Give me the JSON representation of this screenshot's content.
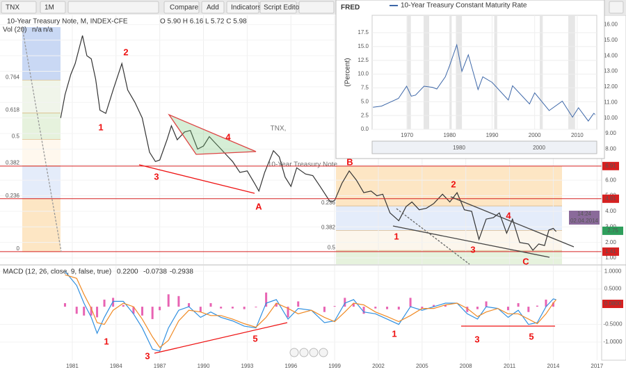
{
  "toolbar": {
    "symbol": "TNX",
    "interval": "1M",
    "buttons": [
      "Compare",
      "Add",
      "Indicators",
      "Script Editor"
    ]
  },
  "chart_data": [
    {
      "type": "line",
      "title": "10-Year Treasury Note, M, INDEX-CFE",
      "ohlc": "O 5.90 H 6.16 L 5.72 C 5.98",
      "volume": "Vol (20)",
      "volume_values": [
        "n/a",
        "n/a"
      ],
      "watermark": [
        "TNX,",
        "10-Year Treasury Note"
      ],
      "color": "#333333",
      "x": [
        1980.2,
        1980.5,
        1980.9,
        1981.2,
        1981.7,
        1982.0,
        1982.3,
        1982.6,
        1982.9,
        1983.3,
        1983.8,
        1984.4,
        1984.8,
        1985.3,
        1985.8,
        1986.3,
        1986.7,
        1987.0,
        1987.5,
        1987.8,
        1988.2,
        1988.7,
        1989.1,
        1989.6,
        1990.0,
        1990.4,
        1990.8,
        1991.2,
        1991.7,
        1992.0,
        1992.5,
        1993.0,
        1993.5,
        1993.8,
        1994.2,
        1994.8,
        1995.2,
        1995.6,
        1996.0,
        1996.4,
        1997.0,
        1997.5,
        1998.0,
        1998.7,
        1999.0,
        1999.5,
        2000.0,
        2000.5,
        2001.0,
        2001.5,
        2001.9,
        2002.3,
        2002.8,
        2003.4,
        2003.9,
        2004.3,
        2004.8,
        2005.3,
        2005.8,
        2006.4,
        2006.9,
        2007.4,
        2007.9,
        2008.4,
        2008.9,
        2009.4,
        2009.9,
        2010.3,
        2010.8,
        2011.2,
        2011.7,
        2012.3,
        2012.6,
        2013.0,
        2013.4,
        2013.7,
        2014.0,
        2014.2
      ],
      "values": [
        10.0,
        11.5,
        12.8,
        13.5,
        15.3,
        14.0,
        13.8,
        12.5,
        10.5,
        10.3,
        11.8,
        13.5,
        11.8,
        11.0,
        10.0,
        7.8,
        7.2,
        7.3,
        8.6,
        9.5,
        8.6,
        9.1,
        9.2,
        8.0,
        8.2,
        8.8,
        8.4,
        8.0,
        7.5,
        7.2,
        6.5,
        6.6,
        5.8,
        5.3,
        6.5,
        7.9,
        7.5,
        6.2,
        5.6,
        6.8,
        6.4,
        6.3,
        5.6,
        4.6,
        4.7,
        5.8,
        6.6,
        6.0,
        5.2,
        5.3,
        5.0,
        5.1,
        3.9,
        3.4,
        4.3,
        4.6,
        4.1,
        4.2,
        4.5,
        5.1,
        4.6,
        5.2,
        4.1,
        4.0,
        2.2,
        3.5,
        3.6,
        3.9,
        2.6,
        3.5,
        2.0,
        1.9,
        1.5,
        1.9,
        1.8,
        2.8,
        2.9,
        2.7
      ],
      "xlim": [
        1976.04,
        2017.32
      ],
      "xticks": [
        1981,
        1984,
        1987,
        1990,
        1993,
        1996,
        1999,
        2002,
        2005,
        2008,
        2011,
        2014,
        2017
      ],
      "ylim": [
        0.6,
        16.6
      ],
      "yticks": [
        {
          "value": 16,
          "label": "16.00"
        },
        {
          "value": 15,
          "label": "15.00"
        },
        {
          "value": 14,
          "label": "14.00"
        },
        {
          "value": 13,
          "label": "13.00"
        },
        {
          "value": 12,
          "label": "12.00"
        },
        {
          "value": 11,
          "label": "11.00"
        },
        {
          "value": 10,
          "label": "10.00"
        },
        {
          "value": 9,
          "label": "9.00"
        },
        {
          "value": 8,
          "label": "8.00"
        },
        {
          "value": 7,
          "label": "7.00"
        },
        {
          "value": 6,
          "label": "6.00"
        },
        {
          "value": 5,
          "label": "5.00"
        },
        {
          "value": 4,
          "label": "4.00"
        },
        {
          "value": 3,
          "label": "3.00"
        },
        {
          "value": 2,
          "label": "2.00"
        },
        {
          "value": 1,
          "label": "1.00"
        }
      ],
      "levels": [
        {
          "value": 6.91,
          "label": "6.91"
        },
        {
          "value": 4.81,
          "label": "4.81"
        },
        {
          "value": 1.41,
          "label": "1.41"
        }
      ],
      "level_color": "#d62020",
      "last": {
        "value": 2.75,
        "label": "2.75"
      },
      "last_color": "#2e9e5b",
      "cursor": [
        "14:24",
        "02.04.2014"
      ],
      "fib_left": {
        "range": [
          1.41,
          15.84
        ],
        "levels": [
          0,
          0.236,
          0.382,
          0.5,
          0.618,
          0.764
        ],
        "colors": [
          "#ffffff",
          "#fde6c4",
          "#e4ecfa",
          "#fff8ee",
          "#e6f2dd",
          "#f0f5ea",
          "#c9d8f4"
        ]
      },
      "fib_right": {
        "range": [
          6.91,
          -3.94
        ],
        "levels": [
          0.236,
          0.382,
          0.5
        ],
        "colors": [
          "#fde6c4",
          "#e4ecfa",
          "#fcf6ec",
          "#e6f2dd"
        ]
      },
      "annotations": [
        "1",
        "2",
        "3",
        "4",
        "A",
        "B",
        "1",
        "2",
        "3",
        "4",
        "C"
      ]
    },
    {
      "type": "line",
      "title": "MACD (12, 26, close, 9, false, true)",
      "legend": [
        {
          "value": 0.22,
          "label": "0.2200",
          "color": "#e0309a"
        },
        {
          "value": -0.0738,
          "label": "-0.0738",
          "color": "#2f8fe0"
        },
        {
          "value": -0.2938,
          "label": "-0.2938",
          "color": "#f08a24"
        }
      ],
      "x": [
        1980.5,
        1981.3,
        1981.8,
        1982.3,
        1982.7,
        1983.2,
        1983.8,
        1984.5,
        1985.2,
        1985.8,
        1986.5,
        1987.0,
        1987.6,
        1988.3,
        1989.0,
        1989.8,
        1990.5,
        1991.2,
        1992.0,
        1992.8,
        1993.6,
        1994.3,
        1995.0,
        1995.8,
        1996.5,
        1997.4,
        1998.3,
        1999.0,
        1999.7,
        2000.3,
        2001.0,
        2001.8,
        2002.6,
        2003.4,
        2004.2,
        2005.0,
        2005.8,
        2006.6,
        2007.4,
        2008.1,
        2008.8,
        2009.4,
        2010.2,
        2010.9,
        2011.6,
        2012.3,
        2012.9,
        2013.5,
        2014.0,
        2014.2
      ],
      "series": [
        {
          "type": "bar",
          "color": "#e0309a",
          "values": [
            0.1,
            -0.2,
            -0.25,
            -0.25,
            -0.3,
            0.2,
            0.25,
            0.05,
            -0.2,
            -0.25,
            -0.35,
            -0.1,
            0.35,
            0.3,
            0.1,
            -0.15,
            0.1,
            -0.05,
            -0.05,
            -0.07,
            -0.02,
            0.4,
            0.1,
            -0.3,
            0.15,
            0.0,
            -0.15,
            0.02,
            0.25,
            0.1,
            -0.2,
            -0.05,
            -0.07,
            -0.08,
            0.25,
            -0.05,
            0.05,
            0.05,
            0.0,
            -0.15,
            -0.07,
            0.15,
            0.0,
            -0.1,
            0.1,
            -0.15,
            0.03,
            0.2,
            0.12,
            0.0
          ]
        },
        {
          "type": "line",
          "color": "#2f8fe0",
          "values": [
            1.0,
            0.6,
            0.1,
            -0.3,
            -0.75,
            -0.3,
            0.15,
            0.15,
            -0.2,
            -0.6,
            -1.2,
            -1.25,
            -0.6,
            -0.1,
            0.0,
            -0.3,
            -0.15,
            -0.3,
            -0.4,
            -0.55,
            -0.6,
            0.1,
            0.2,
            -0.35,
            -0.05,
            -0.1,
            -0.45,
            -0.4,
            0.1,
            0.2,
            -0.15,
            -0.2,
            -0.35,
            -0.5,
            0.0,
            -0.1,
            0.0,
            0.1,
            0.1,
            -0.2,
            -0.35,
            0.0,
            -0.05,
            -0.3,
            -0.1,
            -0.5,
            -0.45,
            0.0,
            0.22,
            0.2
          ]
        },
        {
          "type": "line",
          "color": "#f08a24",
          "values": [
            0.9,
            0.8,
            0.35,
            -0.05,
            -0.45,
            -0.5,
            -0.1,
            0.1,
            0.0,
            -0.35,
            -0.85,
            -1.15,
            -0.95,
            -0.4,
            -0.1,
            -0.15,
            -0.25,
            -0.25,
            -0.35,
            -0.48,
            -0.58,
            -0.3,
            0.1,
            -0.05,
            -0.2,
            -0.1,
            -0.3,
            -0.42,
            -0.15,
            0.1,
            0.05,
            -0.15,
            -0.28,
            -0.42,
            -0.25,
            -0.05,
            -0.05,
            0.05,
            0.1,
            -0.05,
            -0.28,
            -0.15,
            -0.05,
            -0.2,
            -0.2,
            -0.35,
            -0.48,
            -0.2,
            0.1,
            0.2
          ]
        }
      ],
      "ylim": [
        -1.51,
        1.16
      ],
      "yticks": [
        {
          "value": 1,
          "label": "1.0000"
        },
        {
          "value": 0.5,
          "label": "0.5000"
        },
        {
          "value": -0.5,
          "label": "-0.5000"
        },
        {
          "value": -1,
          "label": "-1.0000"
        }
      ],
      "last": {
        "value": 0.08,
        "label": "0.0800"
      },
      "last_color": "#d62020",
      "annotations": [
        "1",
        "3",
        "5",
        "1",
        "3",
        "5"
      ]
    },
    {
      "type": "line",
      "logo": "FRED",
      "title": "10-Year Treasury Constant Maturity Rate",
      "ylabel": "(Percent)",
      "color": "#3d67a8",
      "x": [
        1962,
        1964,
        1966,
        1968,
        1969.9,
        1971,
        1972,
        1974,
        1976,
        1977,
        1979,
        1980,
        1981.7,
        1982.9,
        1984.4,
        1986.7,
        1987.8,
        1990,
        1993.8,
        1994.8,
        1998.8,
        2000,
        2003.4,
        2006.5,
        2008.9,
        2010.3,
        2012.6,
        2013.9,
        2014.2
      ],
      "values": [
        4.0,
        4.2,
        4.9,
        5.6,
        7.8,
        6.0,
        6.2,
        7.8,
        7.6,
        7.3,
        9.5,
        11.5,
        15.3,
        10.5,
        13.5,
        7.2,
        9.5,
        8.5,
        5.3,
        7.9,
        4.6,
        6.6,
        3.4,
        5.1,
        2.2,
        3.9,
        1.5,
        2.9,
        2.7
      ],
      "xlim": [
        1961.8,
        2014.6
      ],
      "xticks": [
        1970,
        1980,
        1990,
        2000,
        2010
      ],
      "ylim": [
        0,
        17.5
      ],
      "yticks": [
        {
          "value": 0,
          "label": "0.0"
        },
        {
          "value": 2.5,
          "label": "2.5"
        },
        {
          "value": 5,
          "label": "5.0"
        },
        {
          "value": 7.5,
          "label": "7.5"
        },
        {
          "value": 10,
          "label": "10.0"
        },
        {
          "value": 12.5,
          "label": "12.5"
        },
        {
          "value": 15,
          "label": "15.0"
        },
        {
          "value": 17.5,
          "label": "17.5"
        }
      ],
      "navigator": [
        "1980",
        "2000"
      ]
    }
  ]
}
